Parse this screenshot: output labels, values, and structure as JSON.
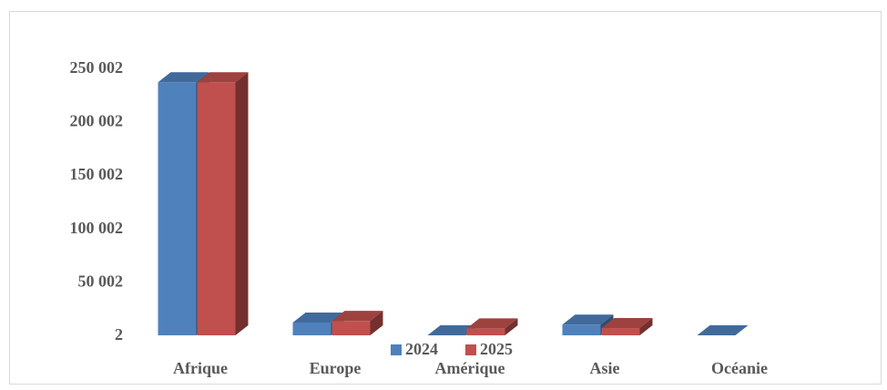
{
  "chart_data": {
    "type": "bar",
    "style": "3d-clustered",
    "categories": [
      "Afrique",
      "Europe",
      "Amérique",
      "Asie",
      "Océanie"
    ],
    "series": [
      {
        "name": "2024",
        "values": [
          237000,
          12000,
          0,
          10000,
          0
        ],
        "color": "#4f81bd"
      },
      {
        "name": "2025",
        "values": [
          237000,
          13500,
          6500,
          6800,
          null
        ],
        "color": "#c0504d"
      }
    ],
    "y_ticks": [
      "2",
      "50 002",
      "100 002",
      "150 002",
      "200 002",
      "250 002"
    ],
    "ylim": [
      2,
      250002
    ],
    "grid": false,
    "legend_position": "bottom"
  }
}
